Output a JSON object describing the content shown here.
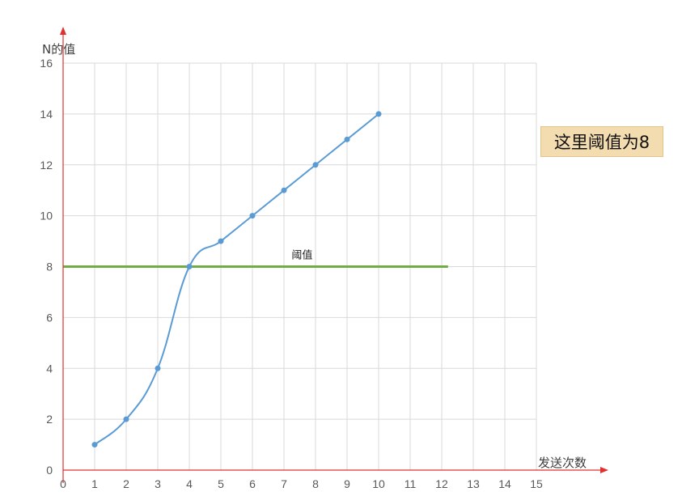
{
  "chart_data": {
    "type": "line",
    "title": "",
    "xlabel": "发送次数",
    "ylabel": "N的值",
    "xlim": [
      0,
      15
    ],
    "ylim": [
      0,
      16
    ],
    "x_ticks": [
      0,
      1,
      2,
      3,
      4,
      5,
      6,
      7,
      8,
      9,
      10,
      11,
      12,
      13,
      14,
      15
    ],
    "y_ticks": [
      0,
      2,
      4,
      6,
      8,
      10,
      12,
      14,
      16
    ],
    "grid": true,
    "series": [
      {
        "x": [
          1,
          2,
          3,
          4,
          5,
          6,
          7,
          8,
          9,
          10
        ],
        "values": [
          1,
          2,
          4,
          8,
          9,
          10,
          11,
          12,
          13,
          14
        ],
        "color": "#5b9bd5",
        "smooth": true
      }
    ],
    "threshold_line": {
      "y": 8,
      "x_range": [
        0,
        12.2
      ],
      "label": "阈值",
      "label_x": 7.6,
      "color": "#70ad47"
    },
    "axis_color": "#e03030"
  },
  "note": {
    "text": "这里阈值为8"
  }
}
